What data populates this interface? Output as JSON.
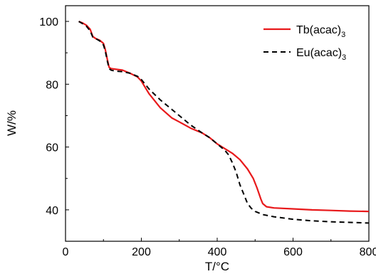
{
  "chart_data": {
    "type": "line",
    "xlabel": "T/°C",
    "ylabel": "W/%",
    "xlim": [
      0,
      800
    ],
    "ylim": [
      30,
      105
    ],
    "x_ticks": [
      0,
      200,
      400,
      600,
      800
    ],
    "y_ticks": [
      40,
      60,
      80,
      100
    ],
    "grid": false,
    "legend_position": "top-right",
    "series": [
      {
        "name": "Tb(acac)",
        "name_subscript": "3",
        "color": "#e8191b",
        "line_style": "solid",
        "x": [
          35,
          45,
          55,
          65,
          72,
          80,
          90,
          100,
          105,
          110,
          115,
          120,
          130,
          150,
          170,
          190,
          200,
          220,
          250,
          280,
          300,
          330,
          360,
          380,
          400,
          420,
          440,
          460,
          480,
          495,
          505,
          515,
          520,
          530,
          550,
          600,
          650,
          700,
          750,
          800
        ],
        "y": [
          100,
          99.5,
          98.8,
          97.5,
          95.2,
          94.5,
          94,
          93,
          91,
          88,
          85.4,
          85,
          84.8,
          84.5,
          83.5,
          82.3,
          81,
          77,
          72.5,
          69.3,
          68,
          66,
          64.5,
          63,
          61,
          59.5,
          58,
          56,
          53,
          50,
          47,
          43.5,
          42,
          41,
          40.6,
          40.3,
          40,
          39.8,
          39.6,
          39.5
        ]
      },
      {
        "name": "Eu(acac)",
        "name_subscript": "3",
        "color": "#000000",
        "line_style": "dashed",
        "x": [
          35,
          45,
          55,
          65,
          72,
          80,
          90,
          100,
          105,
          110,
          115,
          120,
          130,
          150,
          170,
          190,
          200,
          220,
          250,
          280,
          300,
          330,
          360,
          380,
          400,
          420,
          430,
          440,
          450,
          460,
          470,
          480,
          490,
          500,
          520,
          550,
          600,
          650,
          700,
          750,
          800
        ],
        "y": [
          100,
          99.3,
          98.5,
          97,
          95,
          94.5,
          93.8,
          92.5,
          90.5,
          87.5,
          85,
          84.5,
          84.2,
          84,
          83.5,
          82.5,
          81.5,
          78.5,
          75,
          72,
          70,
          67,
          64.5,
          63,
          61,
          59,
          57.5,
          55,
          52,
          48,
          45,
          42,
          40.5,
          39.5,
          38.5,
          37.8,
          37,
          36.5,
          36.2,
          36,
          35.8
        ]
      }
    ]
  }
}
